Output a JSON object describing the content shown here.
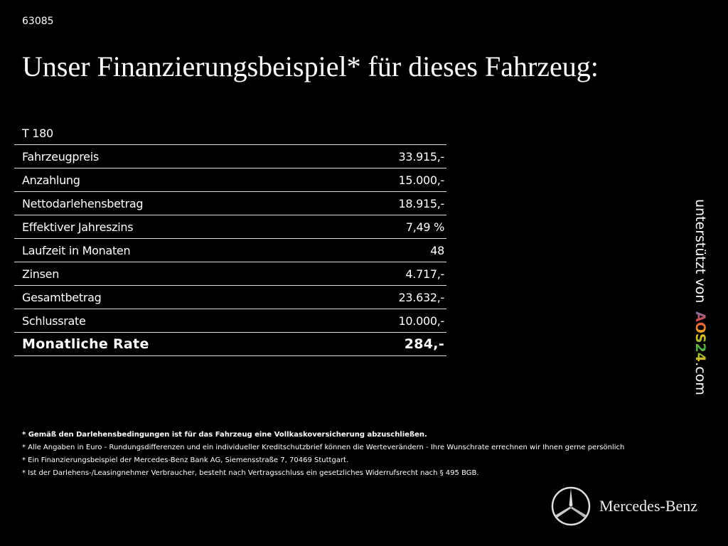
{
  "header": {
    "id": "63085",
    "title": "Unser Finanzierungsbeispiel* für dieses Fahrzeug:"
  },
  "table": {
    "model": "T 180",
    "rows": [
      [
        "Fahrzeugpreis",
        "33.915,-"
      ],
      [
        "Anzahlung",
        "15.000,-"
      ],
      [
        "Nettodarlehensbetrag",
        "18.915,-"
      ],
      [
        "Effektiver Jahreszins",
        "7,49 %"
      ],
      [
        "Laufzeit in Monaten",
        "48"
      ],
      [
        "Zinsen",
        "4.717,-"
      ],
      [
        "Gesamtbetrag",
        "23.632,-"
      ],
      [
        "Schlussrate",
        "10.000,-"
      ]
    ],
    "total": [
      "Monatliche Rate",
      "284,-"
    ]
  },
  "sidebar": {
    "prefix": "unterstützt von",
    "brand": "AOS24",
    "suffix": ".com"
  },
  "footnotes": [
    "* Gemäß den Darlehensbedingungen ist für das Fahrzeug eine Vollkaskoversicherung abzuschließen.",
    "* Alle Angaben in Euro - Rundungsdifferenzen und ein individueller Kreditschutzbrief können die Werteverändern - Ihre Wunschrate errechnen wir Ihnen gerne persönlich",
    "* Ein Finanzierungsbeispiel der Mercedes-Benz Bank AG, Siemensstraße 7, 70469 Stuttgart.",
    "* Ist der Darlehens-/Leasingnehmer Verbraucher, besteht nach Vertragsschluss ein gesetzliches Widerrufsrecht nach § 495 BGB."
  ],
  "logo": {
    "text": "Mercedes-Benz"
  }
}
